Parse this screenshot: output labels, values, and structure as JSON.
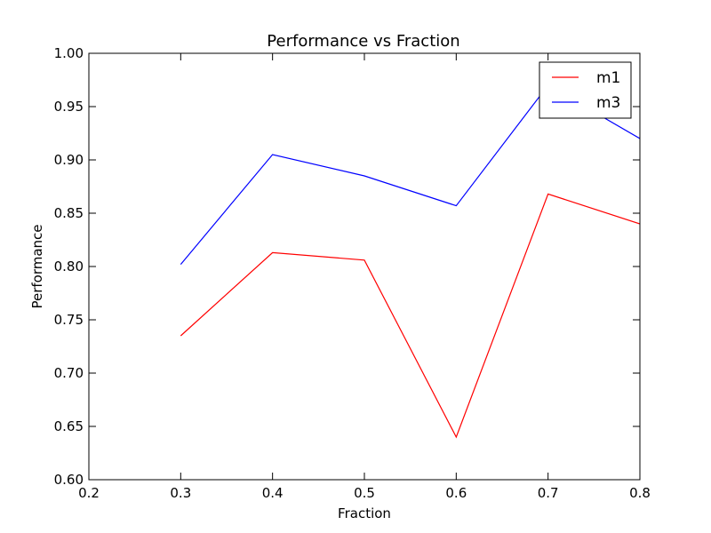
{
  "chart_data": {
    "type": "line",
    "title": "Performance vs Fraction",
    "xlabel": "Fraction",
    "ylabel": "Performance",
    "xlim": [
      0.2,
      0.8
    ],
    "ylim": [
      0.6,
      1.0
    ],
    "xticks": [
      "0.2",
      "0.3",
      "0.4",
      "0.5",
      "0.6",
      "0.7",
      "0.8"
    ],
    "yticks": [
      "0.60",
      "0.65",
      "0.70",
      "0.75",
      "0.80",
      "0.85",
      "0.90",
      "0.95",
      "1.00"
    ],
    "grid": false,
    "legend_position": "top-right",
    "x": [
      0.3,
      0.4,
      0.5,
      0.6,
      0.7,
      0.8
    ],
    "series": [
      {
        "name": "m1",
        "color": "#ff0000",
        "values": [
          0.735,
          0.813,
          0.806,
          0.64,
          0.868,
          0.84
        ]
      },
      {
        "name": "m3",
        "color": "#0000ff",
        "values": [
          0.802,
          0.905,
          0.885,
          0.857,
          0.97,
          0.92
        ]
      }
    ]
  }
}
